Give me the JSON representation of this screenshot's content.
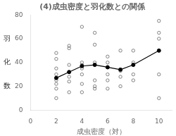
{
  "chart_data": {
    "type": "scatter",
    "title": "(4)成虫密度と羽化数との関係",
    "xlabel": "成虫密度（対）",
    "annotations": [
      {
        "text": "羽",
        "y": 60
      },
      {
        "text": "化",
        "y": 40
      },
      {
        "text": "数",
        "y": 20
      }
    ],
    "xlim": [
      0,
      11
    ],
    "ylim": [
      0,
      80
    ],
    "xticks": [
      0,
      2,
      4,
      6,
      8,
      10
    ],
    "yticks": [
      0,
      20,
      40,
      60,
      80
    ],
    "grid": false,
    "series": [
      {
        "type": "scatter",
        "color": "#666666",
        "marker": "open_circle",
        "x": [
          2,
          2,
          2,
          2,
          2,
          2,
          2,
          2,
          3,
          3,
          3,
          3,
          3,
          3,
          4,
          4,
          4,
          4,
          4,
          4,
          4,
          5,
          5,
          5,
          5,
          5,
          5,
          6,
          6,
          6,
          6,
          6,
          7,
          7,
          7,
          7,
          8,
          8,
          8,
          8,
          10,
          10,
          10,
          10,
          10
        ],
        "values": [
          10,
          18,
          22,
          25,
          30,
          35,
          43,
          48,
          15,
          24,
          28,
          38,
          52,
          54,
          15,
          22,
          30,
          35,
          38,
          40,
          70,
          18,
          20,
          25,
          40,
          55,
          65,
          18,
          25,
          30,
          40,
          45,
          20,
          28,
          33,
          50,
          25,
          30,
          40,
          50,
          10,
          30,
          60,
          65,
          75
        ]
      },
      {
        "type": "line",
        "color": "#000000",
        "marker": "circle",
        "line_style": "solid",
        "x": [
          2,
          3,
          4,
          5,
          6,
          7,
          8,
          10
        ],
        "values": [
          27,
          32,
          37,
          38,
          36,
          34,
          38,
          50
        ]
      }
    ]
  }
}
